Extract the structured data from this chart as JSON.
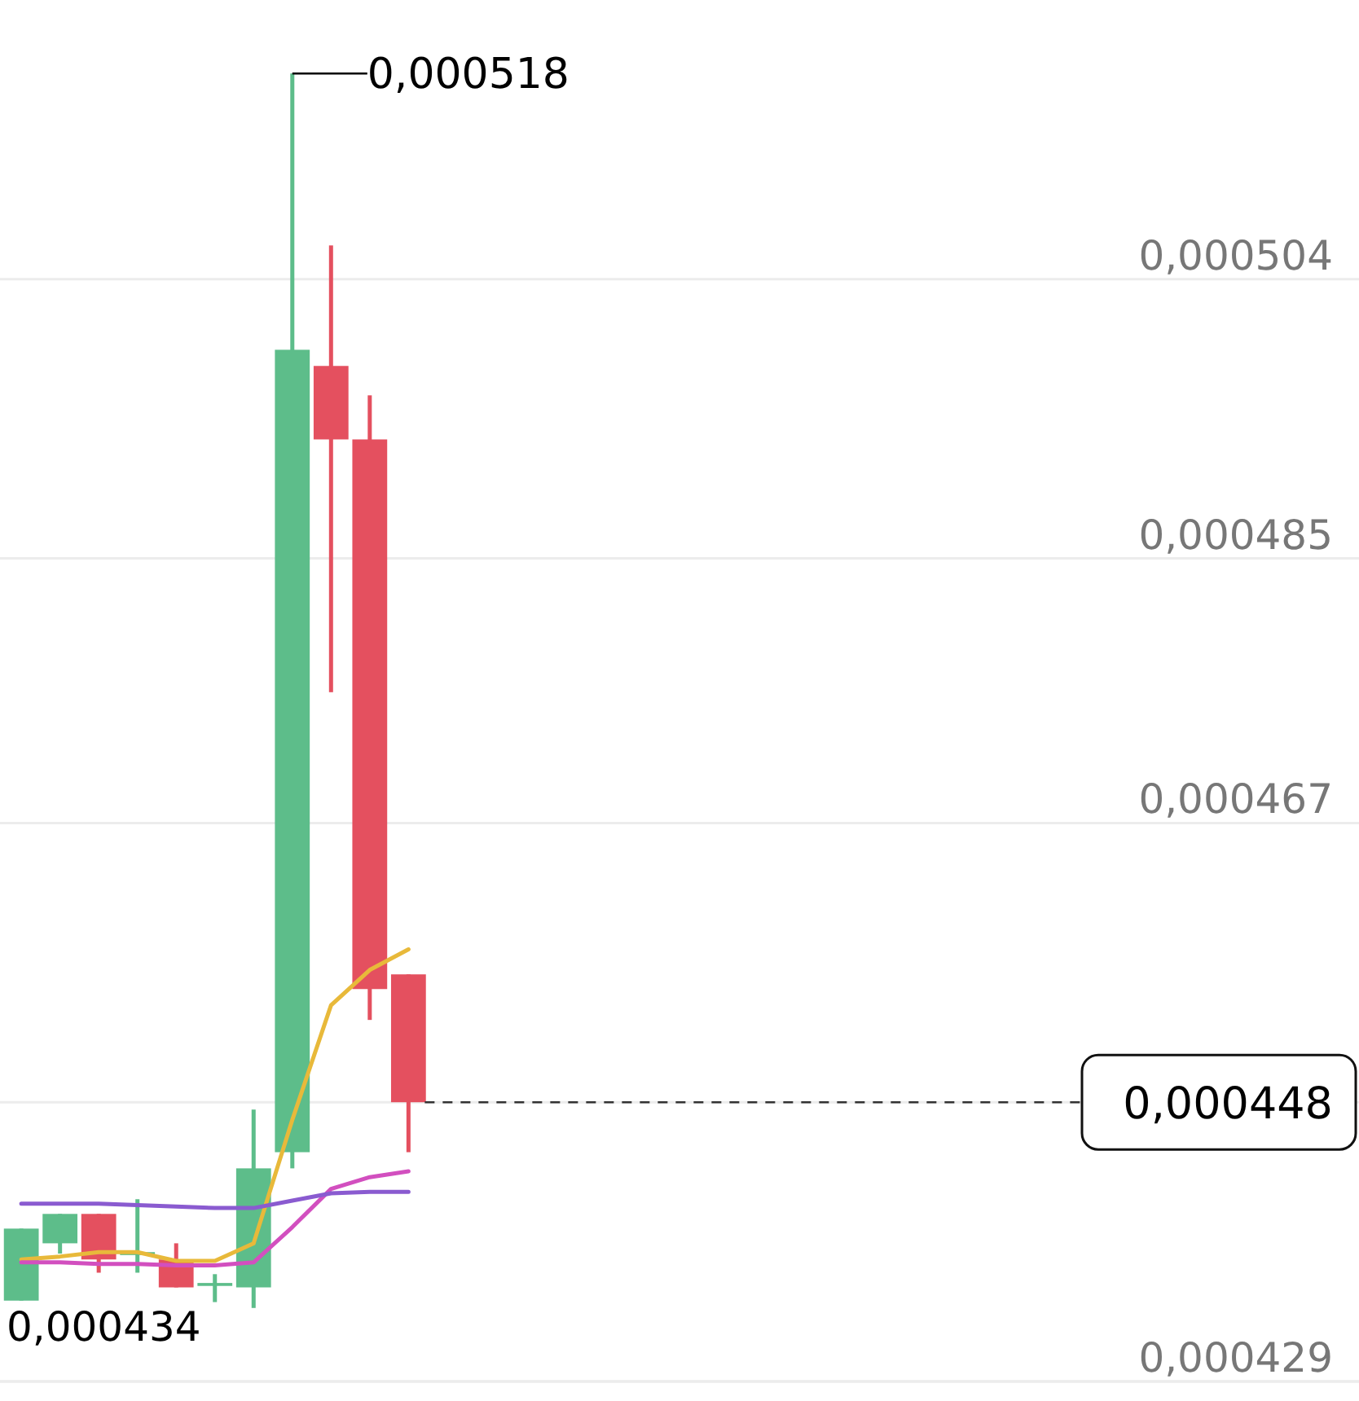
{
  "chart_data": {
    "type": "candlestick",
    "categories": [
      null,
      null,
      null,
      null,
      null,
      null,
      null,
      null,
      null,
      null,
      null,
      null,
      null,
      null,
      null,
      null,
      null,
      null,
      null,
      null,
      null,
      null,
      null,
      null,
      null,
      null,
      null,
      null,
      null,
      null,
      null,
      null,
      null,
      null,
      null
    ],
    "ohlc": [
      [
        0.0004345,
        0.0004394,
        0.0004345,
        0.0004394
      ],
      [
        0.0004384,
        0.0004404,
        0.0004377,
        0.0004404
      ],
      [
        0.0004404,
        0.0004404,
        0.0004364,
        0.0004373
      ],
      [
        0.0004376,
        0.0004414,
        0.0004364,
        0.0004378
      ],
      [
        0.0004373,
        0.0004384,
        0.0004354,
        0.0004354
      ],
      [
        0.0004355,
        0.0004363,
        0.0004344,
        0.0004357
      ],
      [
        0.0004354,
        0.0004475,
        0.000434,
        0.0004435
      ],
      [
        0.0004446,
        0.000518,
        0.0004435,
        0.0004992
      ],
      [
        0.0004981,
        0.0005063,
        0.0004759,
        0.0004931
      ],
      [
        0.0004931,
        0.0004961,
        0.0004536,
        0.0004557
      ],
      [
        0.0004567,
        0.0004567,
        0.0004446,
        0.000448
      ],
      null,
      null,
      null,
      null,
      null,
      null,
      null,
      null,
      null,
      null,
      null,
      null,
      null,
      null,
      null,
      null,
      null,
      null,
      null,
      null,
      null,
      null,
      null,
      null
    ],
    "series": [
      {
        "type": "line",
        "color": "#e8b93a",
        "values": [
          0.0004373,
          0.0004375,
          0.0004378,
          0.0004378,
          0.0004372,
          0.0004372,
          0.0004384,
          0.0004468,
          0.0004546,
          0.000457,
          0.0004584,
          null,
          null,
          null,
          null,
          null,
          null,
          null,
          null,
          null,
          null,
          null,
          null,
          null,
          null,
          null,
          null,
          null,
          null,
          null,
          null,
          null,
          null,
          null,
          null
        ]
      },
      {
        "type": "line",
        "color": "#d24fbf",
        "values": [
          0.0004371,
          0.0004371,
          0.000437,
          0.000437,
          0.0004369,
          0.0004369,
          0.0004371,
          0.0004395,
          0.0004421,
          0.0004429,
          0.0004433,
          null,
          null,
          null,
          null,
          null,
          null,
          null,
          null,
          null,
          null,
          null,
          null,
          null,
          null,
          null,
          null,
          null,
          null,
          null,
          null,
          null,
          null,
          null,
          null
        ]
      },
      {
        "type": "line",
        "color": "#8a5bd0",
        "values": [
          0.0004411,
          0.0004411,
          0.0004411,
          0.000441,
          0.0004409,
          0.0004408,
          0.0004408,
          0.0004413,
          0.0004418,
          0.0004419,
          0.0004419,
          null,
          null,
          null,
          null,
          null,
          null,
          null,
          null,
          null,
          null,
          null,
          null,
          null,
          null,
          null,
          null,
          null,
          null,
          null,
          null,
          null,
          null,
          null,
          null
        ]
      }
    ],
    "colors": [
      "#5dbd8a",
      "#5dbd8a",
      "#e4505f",
      "#5dbd8a",
      "#e4505f",
      "#5dbd8a",
      "#5dbd8a",
      "#5dbd8a",
      "#e4505f",
      "#e4505f",
      "#e4505f",
      null,
      null,
      null,
      null,
      null,
      null,
      null,
      null,
      null,
      null,
      null,
      null,
      null,
      null,
      null,
      null,
      null,
      null,
      null,
      null,
      null,
      null,
      null,
      null
    ],
    "ylim": [
      0.000429,
      0.000523
    ],
    "yticks": [
      {
        "value": 0.000429,
        "label": "0,000429"
      },
      {
        "value": 0.000448,
        "label": null
      },
      {
        "value": 0.000467,
        "label": "0,000467"
      },
      {
        "value": 0.000485,
        "label": "0,000485"
      },
      {
        "value": 0.000504,
        "label": "0,000504"
      }
    ],
    "grid": "y",
    "ref_lines": [
      {
        "axis": "y",
        "value": 0.000448,
        "label": "0,000448",
        "line_style": "dashed"
      }
    ],
    "annotations": [
      "0,000518",
      "0,000434"
    ]
  }
}
